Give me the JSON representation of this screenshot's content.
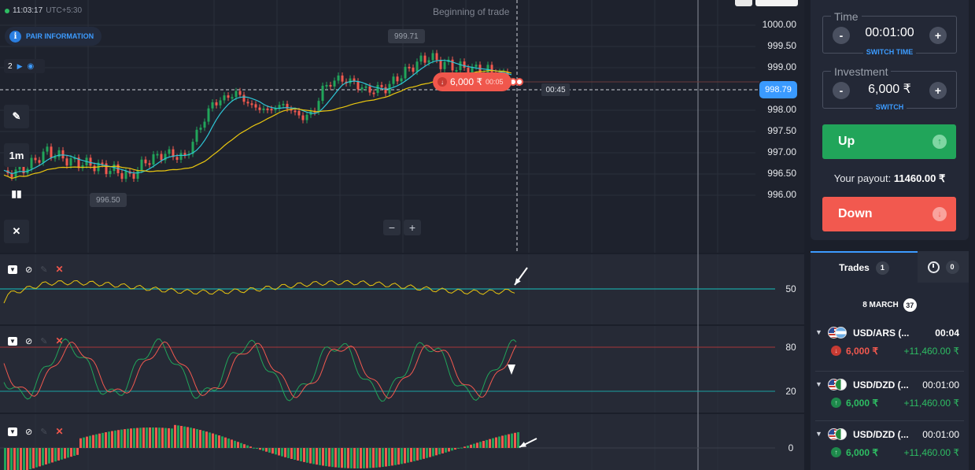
{
  "header": {
    "clock_time": "11:03:17",
    "timezone": "UTC+5:30",
    "pair_info_label": "PAIR INFORMATION",
    "chart_count": "2",
    "timeframe": "1m",
    "beginning_label": "Beginning of trade",
    "high_label": "999.71",
    "low_label": "996.50"
  },
  "price_axis": [
    "1000.00",
    "999.50",
    "999.00",
    "998.00",
    "997.50",
    "997.00",
    "996.50",
    "996.00"
  ],
  "current_price": "998.79",
  "countdown": "00:45",
  "trade_marker": {
    "amount": "6,000 ₹",
    "time": "00:05",
    "direction": "down"
  },
  "indicators": {
    "levels": {
      "rsi": "50",
      "stoch_high": "80",
      "stoch_low": "20",
      "macd_zero": "0"
    }
  },
  "colors": {
    "background": "#1e222d",
    "panel": "#232836",
    "up": "#21a55a",
    "down": "#f2594f",
    "accent": "#3a9aff",
    "ma_fast": "#2ec6d6",
    "ma_slow": "#e9c60f"
  },
  "trade_panel": {
    "time_label": "Time",
    "time_value": "00:01:00",
    "switch_time_label": "SWITCH TIME",
    "investment_label": "Investment",
    "investment_value": "6,000 ₹",
    "switch_label": "SWITCH",
    "minus": "-",
    "plus": "+",
    "up_label": "Up",
    "down_label": "Down",
    "payout_label": "Your payout:",
    "payout_value": "11460.00 ₹"
  },
  "trades_tab": {
    "label": "Trades",
    "count": "1",
    "history_count": "0",
    "date": "8 MARCH",
    "date_count": "37"
  },
  "trades": [
    {
      "symbol": "USD/ARS (...",
      "time": "00:04",
      "direction": "down",
      "amount": "6,000 ₹",
      "payout": "+11,460.00 ₹",
      "flag2": "ars"
    },
    {
      "symbol": "USD/DZD (...",
      "time": "00:01:00",
      "direction": "up",
      "amount": "6,000 ₹",
      "payout": "+11,460.00 ₹",
      "flag2": "dzd"
    },
    {
      "symbol": "USD/DZD (...",
      "time": "00:01:00",
      "direction": "up",
      "amount": "6,000 ₹",
      "payout": "+11,460.00 ₹",
      "flag2": "dzd"
    }
  ],
  "icons": [
    "pencil-icon",
    "drawing-tools-icon",
    "crossed-tools-icon",
    "info-icon",
    "eye-icon",
    "arrow-up-icon",
    "arrow-down-icon",
    "clock-icon"
  ]
}
